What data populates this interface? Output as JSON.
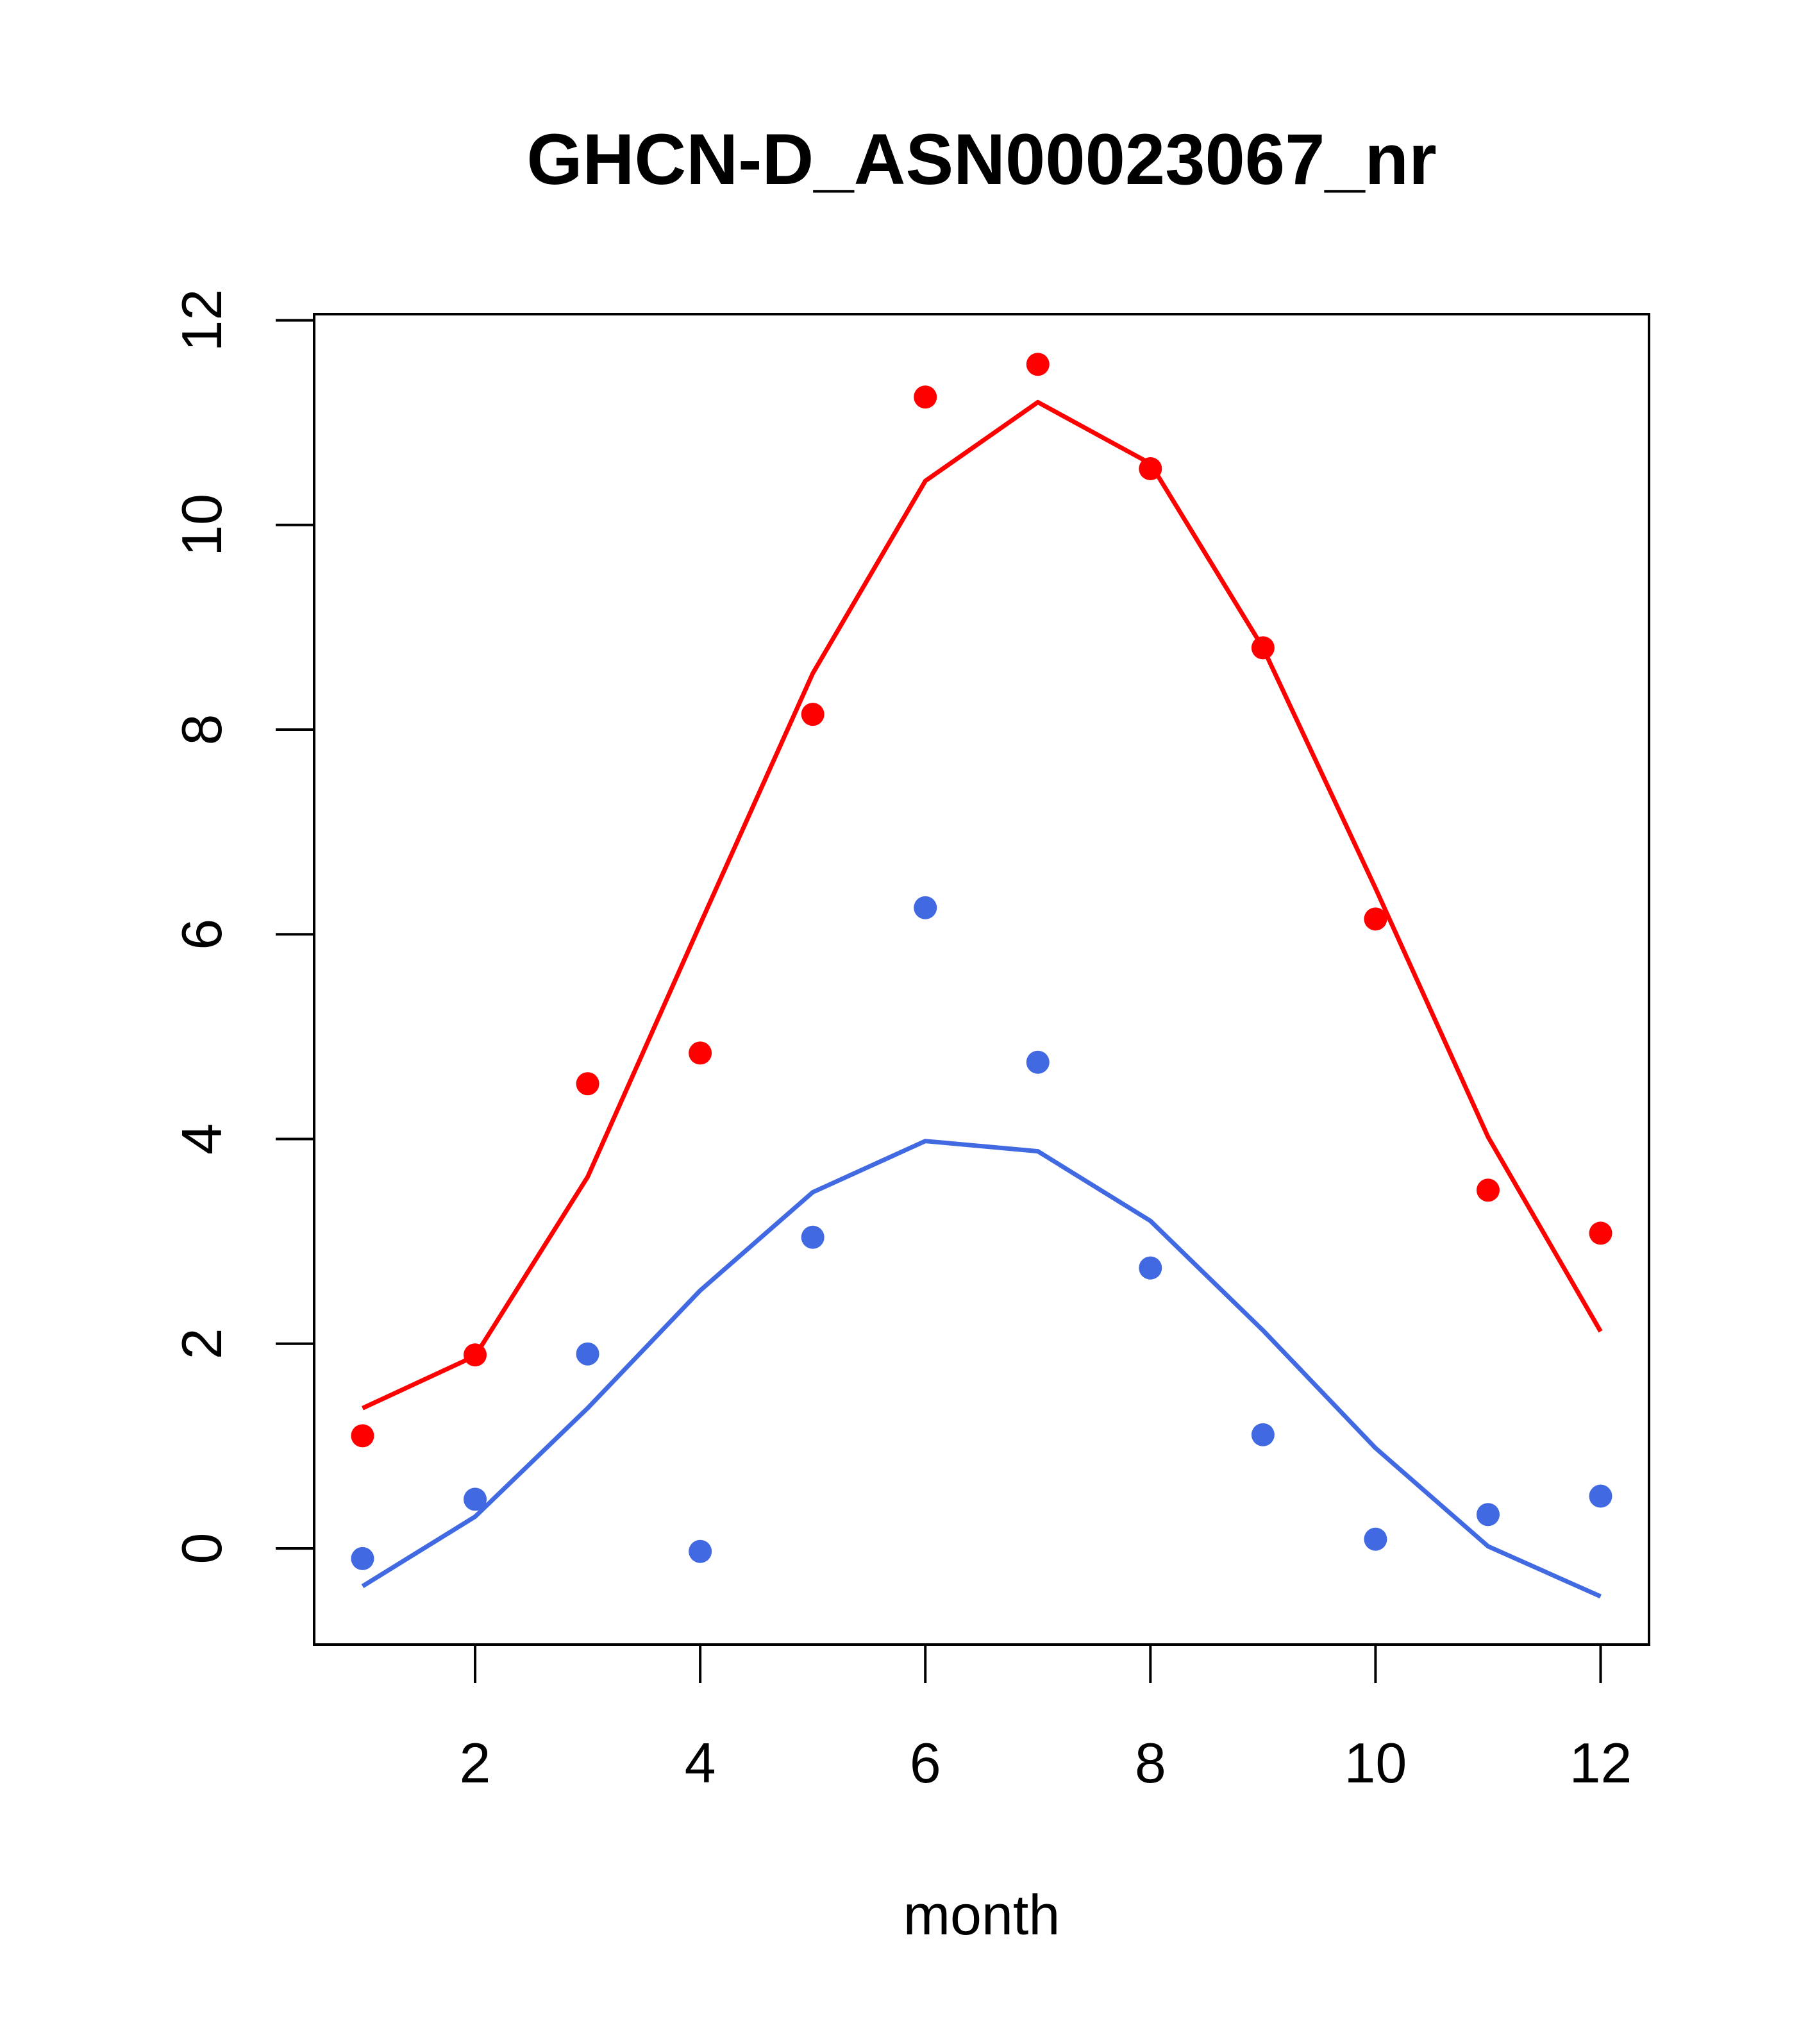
{
  "chart_data": {
    "type": "line",
    "title": "GHCN-D_ASN00023067_nr",
    "xlabel": "month",
    "ylabel": "",
    "xlim": [
      0.57,
      12.43
    ],
    "ylim": [
      -0.94,
      12.06
    ],
    "x_ticks": [
      2,
      4,
      6,
      8,
      10,
      12
    ],
    "x_tick_labels": [
      "2",
      "4",
      "6",
      "8",
      "10",
      "12"
    ],
    "y_ticks": [
      0,
      2,
      4,
      6,
      8,
      10,
      12
    ],
    "y_tick_labels": [
      "0",
      "2",
      "4",
      "6",
      "8",
      "10",
      "12"
    ],
    "grid": false,
    "x": [
      1,
      2,
      3,
      4,
      5,
      6,
      7,
      8,
      9,
      10,
      11,
      12
    ],
    "series": [
      {
        "color": "#ff0000",
        "line": [
          1.37,
          1.88,
          3.63,
          6.1,
          8.55,
          10.43,
          11.2,
          10.6,
          8.8,
          6.45,
          4.02,
          2.12
        ],
        "points": [
          1.1,
          1.89,
          4.54,
          4.84,
          8.15,
          11.25,
          11.57,
          10.55,
          8.8,
          6.15,
          3.5,
          3.08
        ]
      },
      {
        "color": "#4169e1",
        "line": [
          -0.37,
          0.31,
          1.37,
          2.52,
          3.48,
          3.98,
          3.88,
          3.2,
          2.13,
          0.98,
          0.02,
          -0.47
        ],
        "points": [
          -0.1,
          0.48,
          1.9,
          -0.03,
          3.04,
          6.26,
          4.75,
          2.74,
          1.11,
          0.09,
          0.33,
          0.51
        ]
      }
    ]
  }
}
